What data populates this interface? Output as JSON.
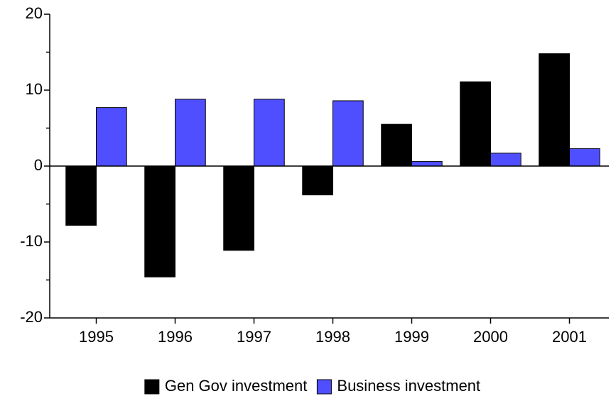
{
  "chart_data": {
    "type": "bar",
    "categories": [
      "1995",
      "1996",
      "1997",
      "1998",
      "1999",
      "2000",
      "2001"
    ],
    "series": [
      {
        "name": "Gen Gov investment",
        "color": "#000000",
        "values": [
          -7.8,
          -14.6,
          -11.1,
          -3.8,
          5.5,
          11.1,
          14.8
        ]
      },
      {
        "name": "Business investment",
        "color": "#4f4fff",
        "values": [
          7.7,
          8.8,
          8.8,
          8.6,
          0.6,
          1.7,
          2.3
        ]
      }
    ],
    "ylim": [
      -20,
      20
    ],
    "yticks": [
      -20,
      -10,
      0,
      10,
      20
    ],
    "grid": false
  }
}
